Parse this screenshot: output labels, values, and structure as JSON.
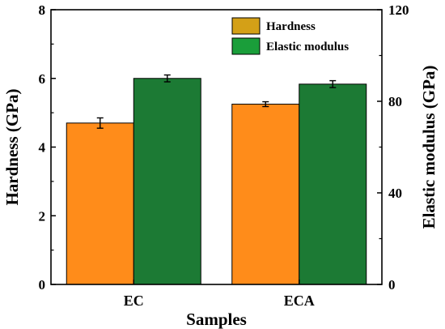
{
  "chart_data": {
    "type": "bar",
    "xlabel": "Samples",
    "categories": [
      "EC",
      "ECA"
    ],
    "series": [
      {
        "name": "Hardness",
        "axis": "left",
        "values": [
          4.7,
          5.25
        ],
        "errors": [
          0.15,
          0.07
        ],
        "color": "#ff8c1a",
        "legend_color": "#d4a017"
      },
      {
        "name": "Elastic modulus",
        "axis": "right",
        "values": [
          90,
          87.5
        ],
        "errors": [
          1.5,
          1.5
        ],
        "color": "#1c7a34",
        "legend_color": "#1a9e3a"
      }
    ],
    "y_left": {
      "label": "Hardness (GPa)",
      "ylim": [
        0,
        8
      ],
      "ticks": [
        "0",
        "2",
        "4",
        "6",
        "8"
      ]
    },
    "y_right": {
      "label": "Elastic modulus (GPa)",
      "ylim": [
        0,
        120
      ],
      "ticks": [
        "0",
        "40",
        "80",
        "120"
      ]
    },
    "legend_position": "top-right",
    "grid": false
  }
}
